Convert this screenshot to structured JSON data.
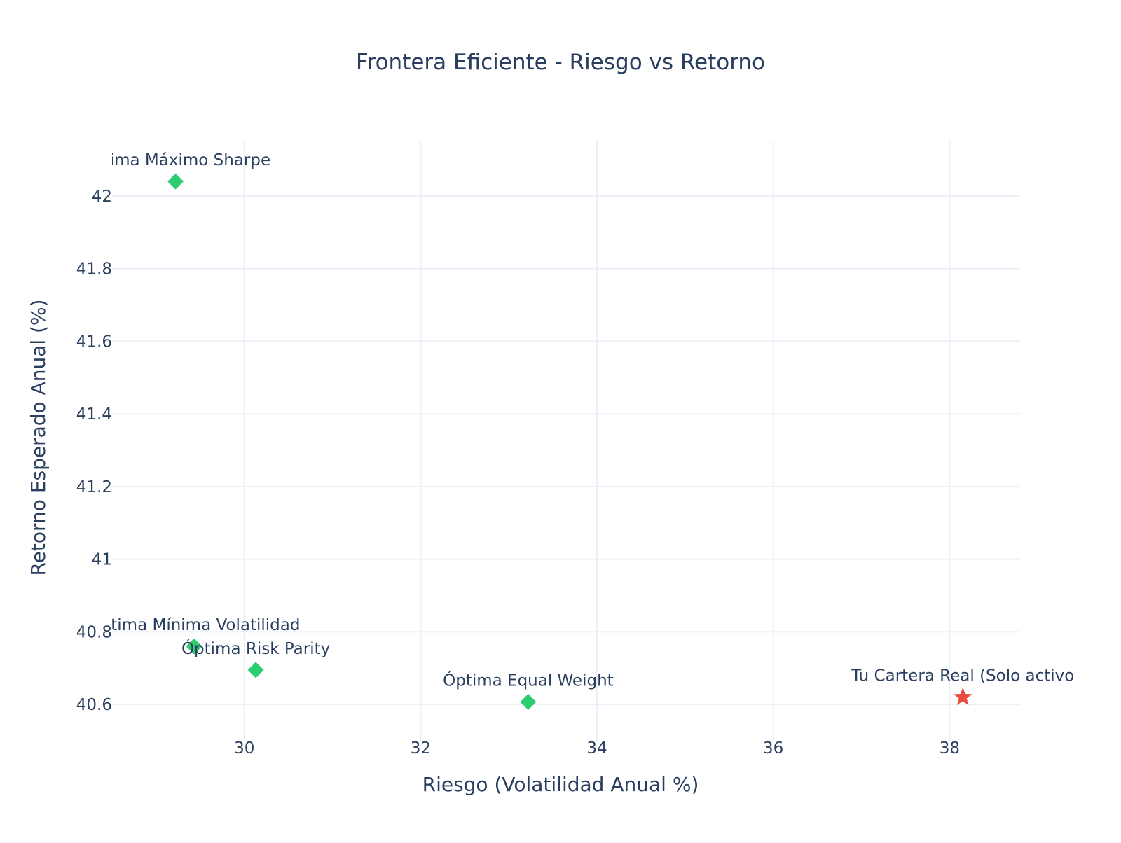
{
  "chart_data": {
    "type": "scatter",
    "title": "Frontera Eficiente - Riesgo vs Retorno",
    "xlabel": "Riesgo (Volatilidad Anual %)",
    "ylabel": "Retorno Esperado Anual (%)",
    "xlim": [
      28.5,
      38.8
    ],
    "ylim": [
      40.5,
      42.15
    ],
    "xticks": [
      30,
      32,
      34,
      36,
      38
    ],
    "yticks": [
      40.6,
      40.8,
      41,
      41.2,
      41.4,
      41.6,
      41.8,
      42
    ],
    "xtick_labels": [
      "30",
      "32",
      "34",
      "36",
      "38"
    ],
    "ytick_labels": [
      "40.6",
      "40.8",
      "41",
      "41.2",
      "41.4",
      "41.6",
      "41.8",
      "42"
    ],
    "grid": true,
    "legend": false,
    "points": [
      {
        "label": "Óptima Máximo Sharpe",
        "x": 29.22,
        "y": 42.04,
        "marker": "diamond",
        "color": "#2ecc71"
      },
      {
        "label": "Óptima Mínima Volatilidad",
        "x": 29.43,
        "y": 40.76,
        "marker": "diamond",
        "color": "#2ecc71"
      },
      {
        "label": "Óptima Risk Parity",
        "x": 30.13,
        "y": 40.695,
        "marker": "diamond",
        "color": "#2ecc71"
      },
      {
        "label": "Óptima Equal Weight",
        "x": 33.22,
        "y": 40.607,
        "marker": "diamond",
        "color": "#2ecc71"
      },
      {
        "label": "Tu Cartera Real (Solo activo",
        "x": 38.15,
        "y": 40.62,
        "marker": "star",
        "color": "#e74c3c"
      }
    ]
  }
}
